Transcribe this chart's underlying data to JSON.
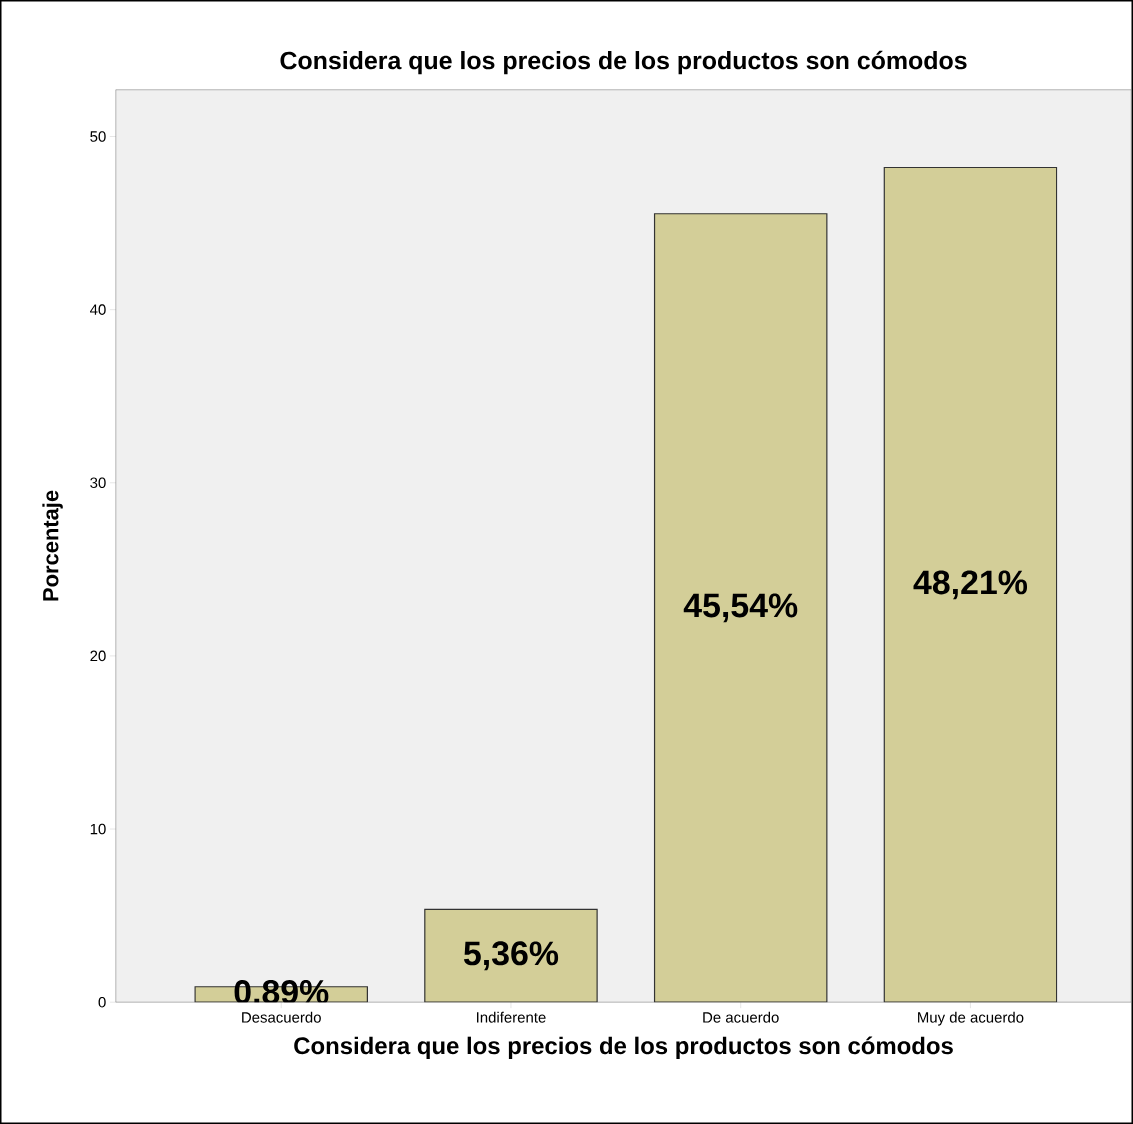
{
  "chart_data": {
    "type": "bar",
    "title": "Considera que los precios de los productos son cómodos",
    "xlabel": "Considera que los precios de los productos son cómodos",
    "ylabel": "Porcentaje",
    "categories": [
      "Desacuerdo",
      "Indiferente",
      "De acuerdo",
      "Muy de acuerdo"
    ],
    "values": [
      0.89,
      5.36,
      45.54,
      48.21
    ],
    "value_labels": [
      "0,89%",
      "5,36%",
      "45,54%",
      "48,21%"
    ],
    "color": "#d3ce98",
    "ylim": [
      0,
      52.7
    ],
    "yticks": [
      0,
      10,
      20,
      30,
      40,
      50
    ]
  }
}
